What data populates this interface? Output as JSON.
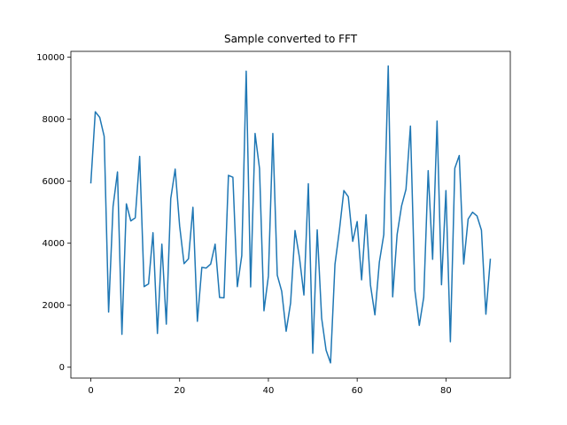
{
  "chart_data": {
    "type": "line",
    "title": "Sample converted to FFT",
    "xlabel": "",
    "ylabel": "",
    "xlim": [
      -4.5,
      94.5
    ],
    "ylim": [
      -350,
      10190
    ],
    "xticks": [
      0,
      20,
      40,
      60,
      80
    ],
    "yticks": [
      0,
      2000,
      4000,
      6000,
      8000,
      10000
    ],
    "grid": false,
    "series": [
      {
        "color": "#1f77b4",
        "x": [
          0,
          1,
          2,
          3,
          4,
          5,
          6,
          7,
          8,
          9,
          10,
          11,
          12,
          13,
          14,
          15,
          16,
          17,
          18,
          19,
          20,
          21,
          22,
          23,
          24,
          25,
          26,
          27,
          28,
          29,
          30,
          31,
          32,
          33,
          34,
          35,
          36,
          37,
          38,
          39,
          40,
          41,
          42,
          43,
          44,
          45,
          46,
          47,
          48,
          49,
          50,
          51,
          52,
          53,
          54,
          55,
          56,
          57,
          58,
          59,
          60,
          61,
          62,
          63,
          64,
          65,
          66,
          67,
          68,
          69,
          70,
          71,
          72,
          73,
          74,
          75,
          76,
          77,
          78,
          79,
          80,
          81,
          82,
          83,
          84,
          85,
          86,
          87,
          88,
          89,
          90
        ],
        "values": [
          5950,
          8240,
          8060,
          7450,
          1780,
          5180,
          6300,
          1060,
          5270,
          4720,
          4820,
          6800,
          2600,
          2690,
          4340,
          1090,
          3970,
          1390,
          5440,
          6390,
          4560,
          3340,
          3500,
          5160,
          1480,
          3220,
          3200,
          3330,
          3970,
          2250,
          2240,
          6190,
          6130,
          2600,
          3600,
          9550,
          2590,
          7540,
          6410,
          1820,
          2940,
          7540,
          2970,
          2450,
          1160,
          2070,
          4410,
          3540,
          2330,
          5920,
          450,
          4430,
          1580,
          550,
          140,
          3320,
          4420,
          5700,
          5500,
          4060,
          4700,
          2820,
          4920,
          2650,
          1690,
          3390,
          4280,
          9720,
          2270,
          4280,
          5200,
          5740,
          7780,
          2480,
          1350,
          2260,
          6340,
          3480,
          7940,
          2660,
          5700,
          820,
          6420,
          6830,
          3330,
          4780,
          5000,
          4880,
          4420,
          1710,
          3480
        ]
      }
    ]
  }
}
